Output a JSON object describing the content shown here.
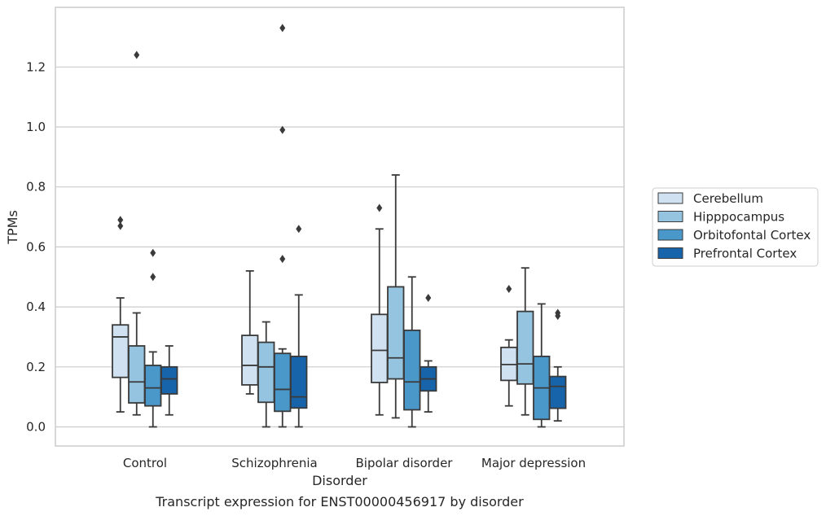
{
  "chart_data": {
    "type": "box",
    "caption": "Transcript expression for ENST00000456917 by disorder",
    "xlabel": "Disorder",
    "ylabel": "TPMs",
    "ylim": [
      -0.065,
      1.4
    ],
    "yticks": [
      0.0,
      0.2,
      0.4,
      0.6,
      0.8,
      1.0,
      1.2
    ],
    "ytick_labels": [
      "0.0",
      "0.2",
      "0.4",
      "0.6",
      "0.8",
      "1.0",
      "1.2"
    ],
    "grid": "horizontal",
    "legend_position": "right",
    "categories": [
      "Control",
      "Schizophrenia",
      "Bipolar disorder",
      "Major depression"
    ],
    "series": [
      {
        "name": "Cerebellum",
        "color": "#d0e1f2",
        "boxes": [
          {
            "whislo": 0.05,
            "q1": 0.165,
            "med": 0.3,
            "q3": 0.34,
            "whishi": 0.43,
            "fliers": [
              0.67,
              0.69
            ]
          },
          {
            "whislo": 0.11,
            "q1": 0.14,
            "med": 0.205,
            "q3": 0.305,
            "whishi": 0.52,
            "fliers": []
          },
          {
            "whislo": 0.04,
            "q1": 0.148,
            "med": 0.255,
            "q3": 0.375,
            "whishi": 0.66,
            "fliers": [
              0.73
            ]
          },
          {
            "whislo": 0.07,
            "q1": 0.155,
            "med": 0.208,
            "q3": 0.265,
            "whishi": 0.29,
            "fliers": [
              0.46
            ]
          }
        ]
      },
      {
        "name": "Hipppocampus",
        "color": "#94c4df",
        "boxes": [
          {
            "whislo": 0.04,
            "q1": 0.08,
            "med": 0.15,
            "q3": 0.27,
            "whishi": 0.38,
            "fliers": [
              1.24
            ]
          },
          {
            "whislo": 0.0,
            "q1": 0.082,
            "med": 0.2,
            "q3": 0.282,
            "whishi": 0.35,
            "fliers": []
          },
          {
            "whislo": 0.03,
            "q1": 0.16,
            "med": 0.23,
            "q3": 0.467,
            "whishi": 0.84,
            "fliers": []
          },
          {
            "whislo": 0.04,
            "q1": 0.143,
            "med": 0.21,
            "q3": 0.385,
            "whishi": 0.53,
            "fliers": []
          }
        ]
      },
      {
        "name": "Orbitofontal Cortex",
        "color": "#4a98c9",
        "boxes": [
          {
            "whislo": 0.0,
            "q1": 0.07,
            "med": 0.13,
            "q3": 0.205,
            "whishi": 0.25,
            "fliers": [
              0.5,
              0.58
            ]
          },
          {
            "whislo": 0.0,
            "q1": 0.052,
            "med": 0.125,
            "q3": 0.245,
            "whishi": 0.26,
            "fliers": [
              0.56,
              0.99,
              1.33
            ]
          },
          {
            "whislo": 0.0,
            "q1": 0.057,
            "med": 0.15,
            "q3": 0.322,
            "whishi": 0.5,
            "fliers": []
          },
          {
            "whislo": 0.0,
            "q1": 0.025,
            "med": 0.13,
            "q3": 0.235,
            "whishi": 0.41,
            "fliers": []
          }
        ]
      },
      {
        "name": "Prefrontal Cortex",
        "color": "#1764ab",
        "boxes": [
          {
            "whislo": 0.04,
            "q1": 0.11,
            "med": 0.16,
            "q3": 0.2,
            "whishi": 0.27,
            "fliers": []
          },
          {
            "whislo": 0.0,
            "q1": 0.063,
            "med": 0.1,
            "q3": 0.235,
            "whishi": 0.44,
            "fliers": [
              0.66
            ]
          },
          {
            "whislo": 0.05,
            "q1": 0.12,
            "med": 0.16,
            "q3": 0.2,
            "whishi": 0.22,
            "fliers": [
              0.43
            ]
          },
          {
            "whislo": 0.02,
            "q1": 0.062,
            "med": 0.135,
            "q3": 0.168,
            "whishi": 0.2,
            "fliers": [
              0.37,
              0.38
            ]
          }
        ]
      }
    ]
  }
}
